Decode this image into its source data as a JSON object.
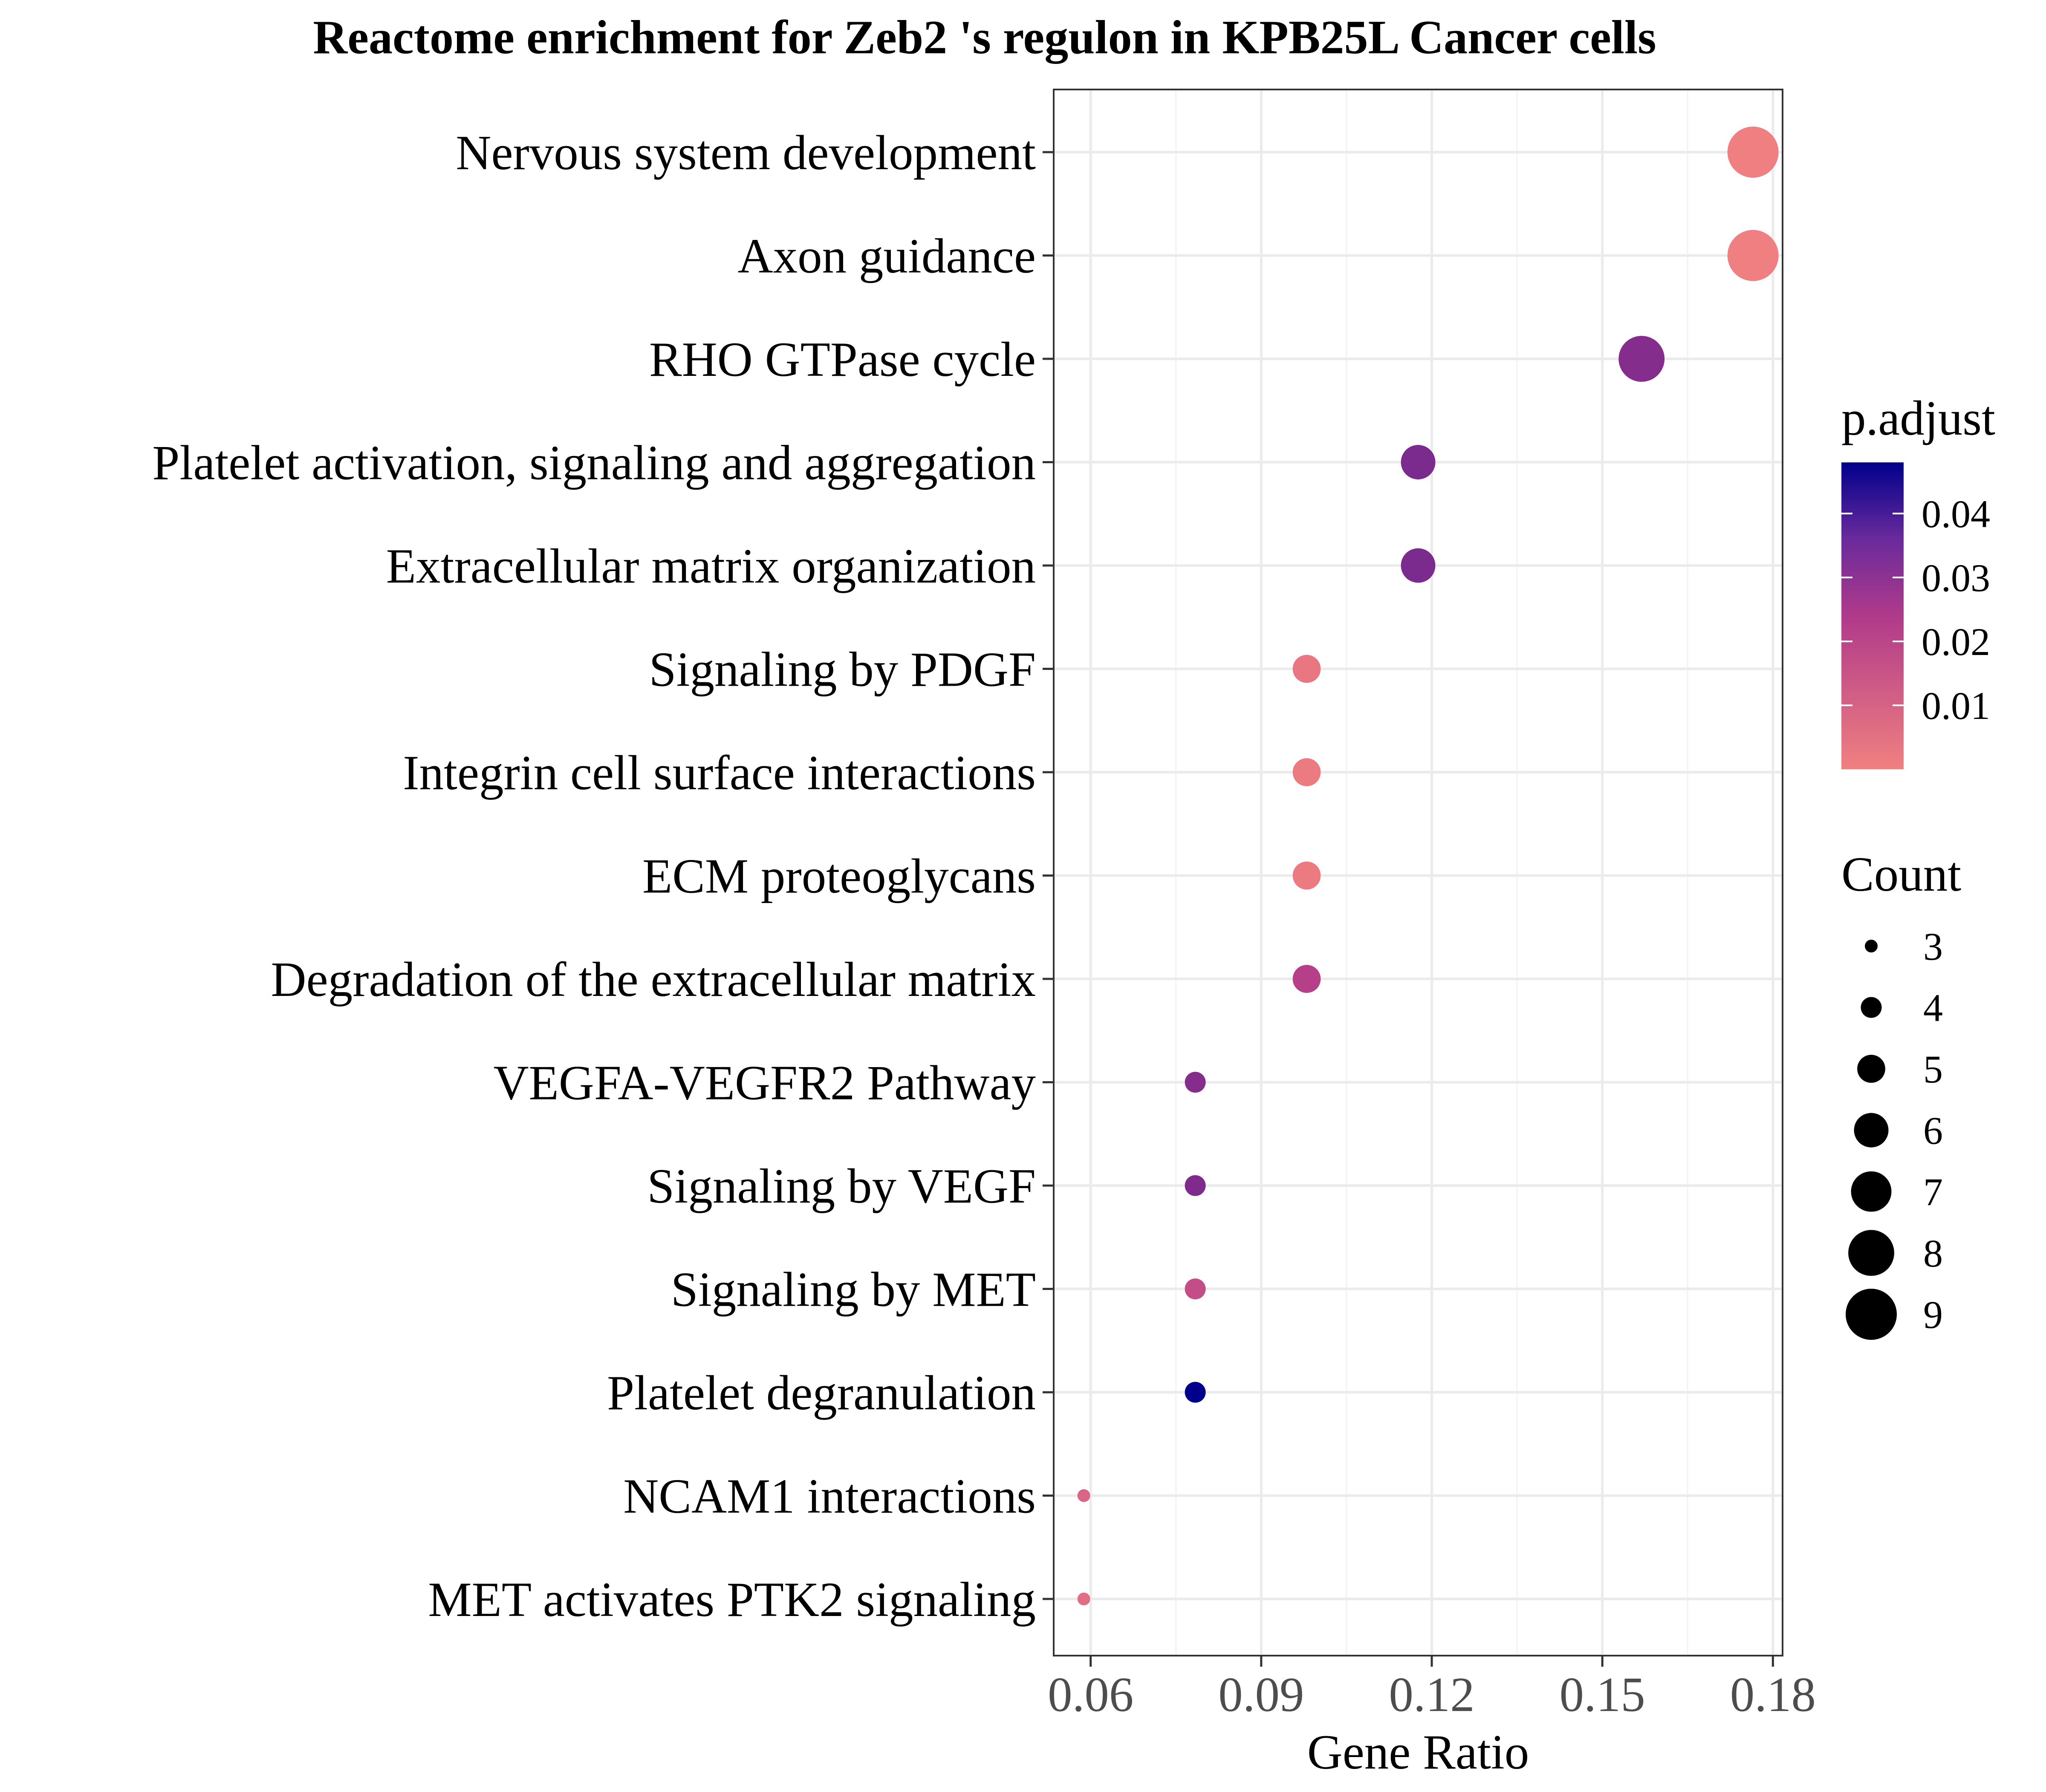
{
  "chart_data": {
    "type": "scatter",
    "title": "Reactome enrichment for Zeb2 's regulon in KPB25L Cancer cells",
    "xlabel": "Gene Ratio",
    "ylabel": "",
    "xlim": [
      0.0535,
      0.1817
    ],
    "xticks": [
      0.06,
      0.09,
      0.12,
      0.15,
      0.18
    ],
    "xtick_labels": [
      "0.06",
      "0.09",
      "0.12",
      "0.15",
      "0.18"
    ],
    "grid": true,
    "categories": [
      "Nervous system development",
      "Axon guidance",
      "RHO GTPase cycle",
      "Platelet activation, signaling and aggregation",
      "Extracellular matrix organization",
      "Signaling by PDGF",
      "Integrin cell surface interactions",
      "ECM proteoglycans",
      "Degradation of the extracellular matrix",
      "VEGFA-VEGFR2 Pathway",
      "Signaling by VEGF",
      "Signaling by MET",
      "Platelet degranulation",
      "NCAM1 interactions",
      "MET activates PTK2 signaling"
    ],
    "points": [
      {
        "term": "Nervous system development",
        "gene_ratio": 0.1765,
        "count": 9,
        "p_adjust": 0.0005
      },
      {
        "term": "Axon guidance",
        "gene_ratio": 0.1765,
        "count": 9,
        "p_adjust": 0.0005
      },
      {
        "term": "RHO GTPase cycle",
        "gene_ratio": 0.1569,
        "count": 8,
        "p_adjust": 0.034
      },
      {
        "term": "Platelet activation, signaling and aggregation",
        "gene_ratio": 0.1176,
        "count": 6,
        "p_adjust": 0.036
      },
      {
        "term": "Extracellular matrix organization",
        "gene_ratio": 0.1176,
        "count": 6,
        "p_adjust": 0.036
      },
      {
        "term": "Signaling by PDGF",
        "gene_ratio": 0.098,
        "count": 5,
        "p_adjust": 0.003
      },
      {
        "term": "Integrin cell surface interactions",
        "gene_ratio": 0.098,
        "count": 5,
        "p_adjust": 0.002
      },
      {
        "term": "ECM proteoglycans",
        "gene_ratio": 0.098,
        "count": 5,
        "p_adjust": 0.002
      },
      {
        "term": "Degradation of the extracellular matrix",
        "gene_ratio": 0.098,
        "count": 5,
        "p_adjust": 0.022
      },
      {
        "term": "VEGFA-VEGFR2 Pathway",
        "gene_ratio": 0.0784,
        "count": 4,
        "p_adjust": 0.034
      },
      {
        "term": "Signaling by VEGF",
        "gene_ratio": 0.0784,
        "count": 4,
        "p_adjust": 0.035
      },
      {
        "term": "Signaling by MET",
        "gene_ratio": 0.0784,
        "count": 4,
        "p_adjust": 0.017
      },
      {
        "term": "Platelet degranulation",
        "gene_ratio": 0.0784,
        "count": 4,
        "p_adjust": 0.048
      },
      {
        "term": "NCAM1 interactions",
        "gene_ratio": 0.0588,
        "count": 3,
        "p_adjust": 0.009
      },
      {
        "term": "MET activates PTK2 signaling",
        "gene_ratio": 0.0588,
        "count": 3,
        "p_adjust": 0.006
      }
    ],
    "color_legend": {
      "title": "p.adjust",
      "ticks": [
        0.04,
        0.03,
        0.02,
        0.01
      ],
      "tick_labels": [
        "0.04",
        "0.03",
        "0.02",
        "0.01"
      ],
      "range": [
        0.0,
        0.048
      ],
      "low_color": "#F08080",
      "mid_color": "#7B2A8E",
      "high_color": "#00008B"
    },
    "size_legend": {
      "title": "Count",
      "values": [
        3,
        4,
        5,
        6,
        7,
        8,
        9
      ],
      "labels": [
        "3",
        "4",
        "5",
        "6",
        "7",
        "8",
        "9"
      ]
    },
    "legend_position": "right"
  },
  "colors": {
    "panel_border": "#333333",
    "grid_major": "#EBEBEB",
    "grid_minor": "#F2F2F2",
    "legend_swatch": "#000000"
  }
}
